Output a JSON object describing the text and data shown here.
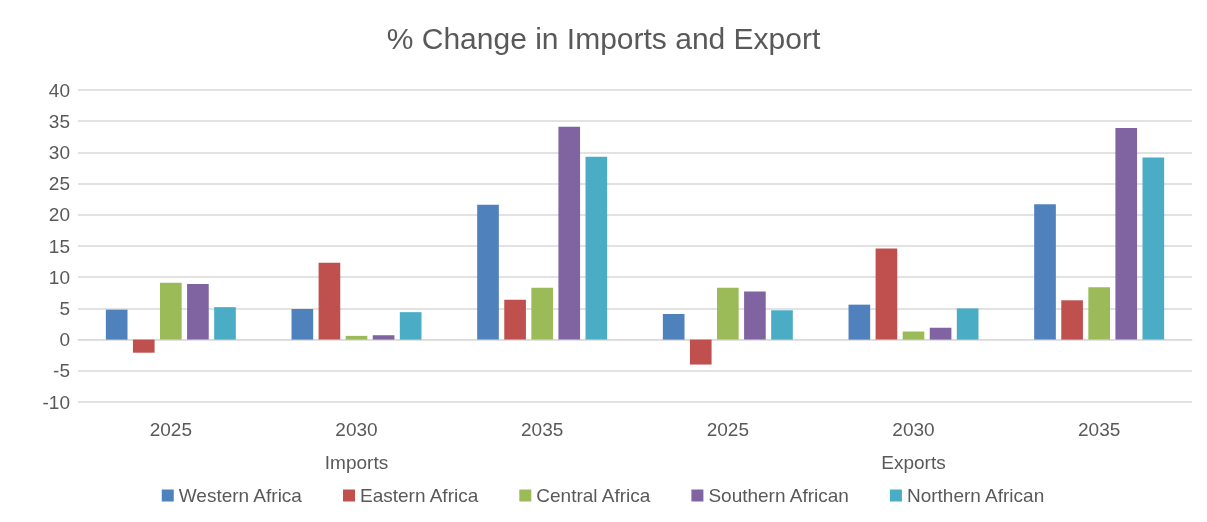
{
  "chart_data": {
    "type": "bar",
    "title": "% Change in Imports and Export",
    "categories": [
      "2025",
      "2030",
      "2035",
      "2025",
      "2030",
      "2035"
    ],
    "annotations": [
      "Imports",
      "Exports"
    ],
    "series": [
      {
        "name": "Western Africa",
        "color": "#4f81bd",
        "values": [
          4.8,
          4.9,
          21.6,
          4.1,
          5.6,
          21.7
        ]
      },
      {
        "name": "Eastern Africa",
        "color": "#c0504d",
        "values": [
          -2.1,
          12.3,
          6.4,
          -4.0,
          14.6,
          6.3
        ]
      },
      {
        "name": "Central Africa",
        "color": "#9bbb59",
        "values": [
          9.1,
          0.6,
          8.3,
          8.3,
          1.3,
          8.4
        ]
      },
      {
        "name": "Southern African",
        "color": "#8064a2",
        "values": [
          8.9,
          0.7,
          34.1,
          7.7,
          1.9,
          33.9
        ]
      },
      {
        "name": "Northern African",
        "color": "#4bacc6",
        "values": [
          5.2,
          4.4,
          29.3,
          4.7,
          5.0,
          29.2
        ]
      }
    ],
    "ylim": [
      -10,
      40
    ],
    "yticks": [
      -10,
      -5,
      0,
      5,
      10,
      15,
      20,
      25,
      30,
      35,
      40
    ],
    "grid": "y",
    "legend": "bottom"
  }
}
